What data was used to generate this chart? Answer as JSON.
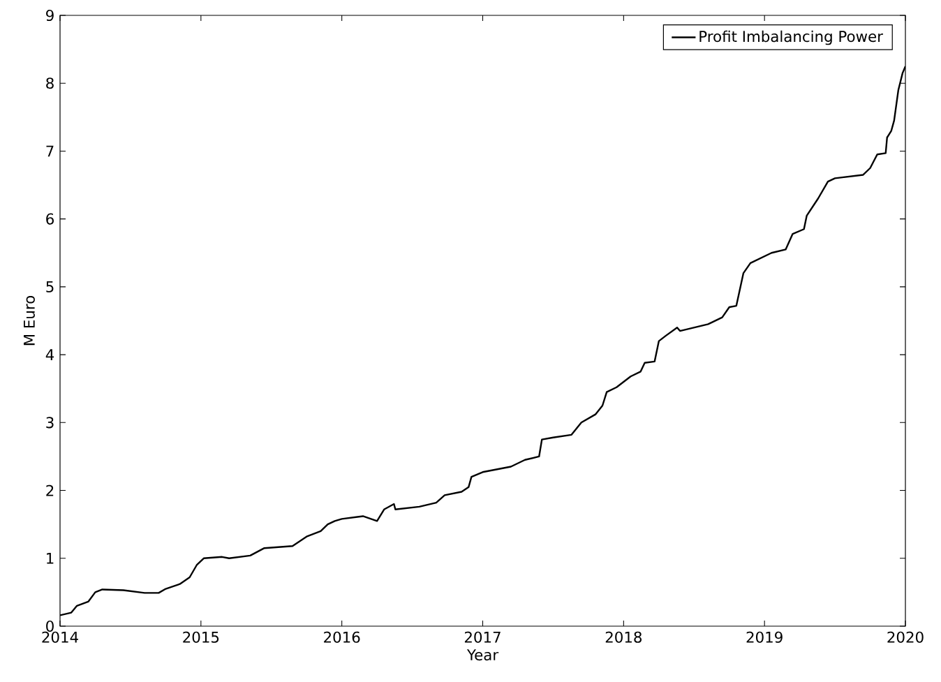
{
  "chart_data": {
    "type": "line",
    "xlabel": "Year",
    "ylabel": "M Euro",
    "x": [
      2014.0,
      2014.08,
      2014.12,
      2014.2,
      2014.25,
      2014.3,
      2014.45,
      2014.6,
      2014.7,
      2014.75,
      2014.85,
      2014.92,
      2014.97,
      2015.02,
      2015.15,
      2015.2,
      2015.35,
      2015.45,
      2015.65,
      2015.75,
      2015.85,
      2015.9,
      2015.95,
      2016.0,
      2016.15,
      2016.25,
      2016.3,
      2016.37,
      2016.38,
      2016.55,
      2016.67,
      2016.73,
      2016.85,
      2016.9,
      2016.92,
      2017.0,
      2017.2,
      2017.3,
      2017.4,
      2017.42,
      2017.5,
      2017.63,
      2017.7,
      2017.8,
      2017.85,
      2017.88,
      2017.95,
      2018.05,
      2018.12,
      2018.15,
      2018.22,
      2018.25,
      2018.3,
      2018.38,
      2018.4,
      2018.6,
      2018.7,
      2018.75,
      2018.8,
      2018.85,
      2018.9,
      2019.05,
      2019.15,
      2019.2,
      2019.28,
      2019.3,
      2019.38,
      2019.45,
      2019.5,
      2019.7,
      2019.75,
      2019.8,
      2019.86,
      2019.87,
      2019.9,
      2019.92,
      2019.95,
      2019.98,
      2020.0
    ],
    "series": [
      {
        "name": "Profit Imbalancing Power",
        "color": "#000000",
        "values": [
          0.16,
          0.2,
          0.3,
          0.36,
          0.5,
          0.54,
          0.53,
          0.49,
          0.49,
          0.55,
          0.62,
          0.72,
          0.9,
          1.0,
          1.02,
          1.0,
          1.04,
          1.15,
          1.18,
          1.32,
          1.4,
          1.5,
          1.55,
          1.58,
          1.62,
          1.55,
          1.72,
          1.8,
          1.72,
          1.76,
          1.82,
          1.93,
          1.98,
          2.05,
          2.2,
          2.27,
          2.35,
          2.45,
          2.5,
          2.75,
          2.78,
          2.82,
          3.0,
          3.12,
          3.25,
          3.45,
          3.52,
          3.68,
          3.75,
          3.88,
          3.9,
          4.2,
          4.28,
          4.4,
          4.35,
          4.45,
          4.55,
          4.7,
          4.72,
          5.2,
          5.35,
          5.5,
          5.55,
          5.78,
          5.85,
          6.05,
          6.3,
          6.55,
          6.6,
          6.65,
          6.75,
          6.95,
          6.97,
          7.2,
          7.3,
          7.45,
          7.9,
          8.15,
          8.25
        ]
      }
    ],
    "xlim": [
      2014,
      2020
    ],
    "ylim": [
      0,
      9
    ],
    "xticks": [
      2014,
      2015,
      2016,
      2017,
      2018,
      2019,
      2020
    ],
    "yticks": [
      0,
      1,
      2,
      3,
      4,
      5,
      6,
      7,
      8,
      9
    ],
    "grid": false,
    "legend": "top right",
    "line_style": "solid",
    "marker": "none"
  }
}
